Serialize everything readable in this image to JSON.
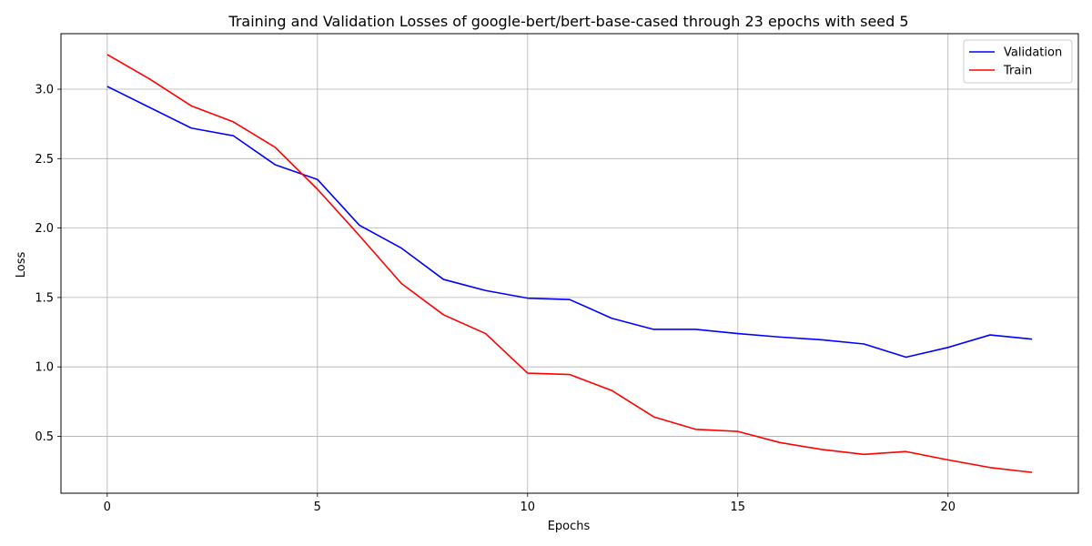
{
  "chart_data": {
    "type": "line",
    "title": "Training and Validation Losses of google-bert/bert-base-cased through 23 epochs with seed 5",
    "xlabel": "Epochs",
    "ylabel": "Loss",
    "xlim": [
      -1.1,
      23.1
    ],
    "ylim": [
      0.09,
      3.4
    ],
    "x_ticks": [
      0,
      5,
      10,
      15,
      20
    ],
    "y_ticks": [
      0.5,
      1.0,
      1.5,
      2.0,
      2.5,
      3.0
    ],
    "x_tick_labels": [
      "0",
      "5",
      "10",
      "15",
      "20"
    ],
    "y_tick_labels": [
      "0.5",
      "1.0",
      "1.5",
      "2.0",
      "2.5",
      "3.0"
    ],
    "grid": true,
    "legend_position": "top-right",
    "x": [
      0,
      1,
      2,
      3,
      4,
      5,
      6,
      7,
      8,
      9,
      10,
      11,
      12,
      13,
      14,
      15,
      16,
      17,
      18,
      19,
      20,
      21,
      22
    ],
    "series": [
      {
        "name": "Validation",
        "color": "#0000ff",
        "values": [
          3.02,
          2.87,
          2.72,
          2.665,
          2.455,
          2.35,
          2.02,
          1.855,
          1.63,
          1.55,
          1.495,
          1.485,
          1.35,
          1.27,
          1.27,
          1.24,
          1.215,
          1.195,
          1.165,
          1.07,
          1.14,
          1.23,
          1.2
        ]
      },
      {
        "name": "Train",
        "color": "#ff0000",
        "values": [
          3.25,
          3.075,
          2.88,
          2.765,
          2.58,
          2.28,
          1.945,
          1.6,
          1.375,
          1.24,
          0.955,
          0.945,
          0.83,
          0.64,
          0.55,
          0.535,
          0.455,
          0.405,
          0.37,
          0.39,
          0.33,
          0.275,
          0.24
        ]
      }
    ]
  }
}
